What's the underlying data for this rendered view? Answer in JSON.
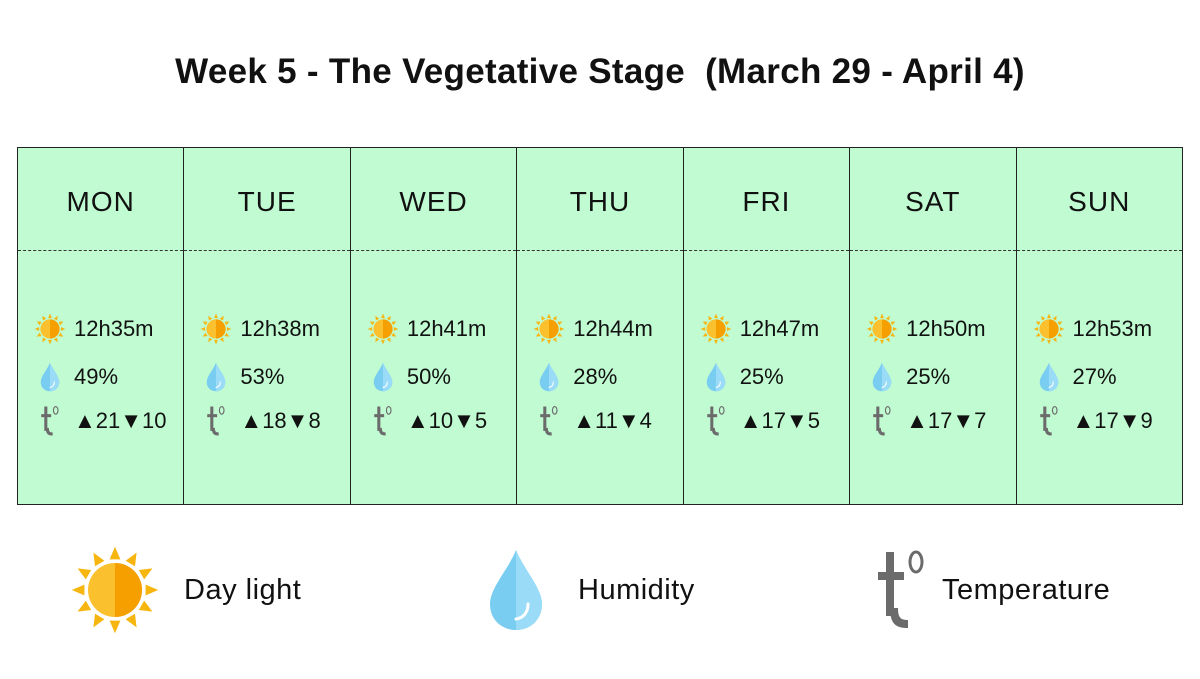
{
  "title": "Week 5 - The Vegetative Stage  (March 29 - April 4)",
  "colors": {
    "cell_bg": "#c0fbd1",
    "sun": "#f6b50f",
    "drop": "#79cdf1",
    "temp_icon": "#6b6b6b"
  },
  "days": [
    {
      "name": "MON",
      "daylight": "12h35m",
      "humidity": "49%",
      "temperature": "▲21▼10"
    },
    {
      "name": "TUE",
      "daylight": "12h38m",
      "humidity": "53%",
      "temperature": "▲18▼8"
    },
    {
      "name": "WED",
      "daylight": "12h41m",
      "humidity": "50%",
      "temperature": "▲10▼5"
    },
    {
      "name": "THU",
      "daylight": "12h44m",
      "humidity": "28%",
      "temperature": "▲11▼4"
    },
    {
      "name": "FRI",
      "daylight": "12h47m",
      "humidity": "25%",
      "temperature": "▲17▼5"
    },
    {
      "name": "SAT",
      "daylight": "12h50m",
      "humidity": "25%",
      "temperature": "▲17▼7"
    },
    {
      "name": "SUN",
      "daylight": "12h53m",
      "humidity": "27%",
      "temperature": "▲17▼9"
    }
  ],
  "legend": [
    {
      "icon": "sun-icon",
      "label": "Day light"
    },
    {
      "icon": "water-drop-icon",
      "label": "Humidity"
    },
    {
      "icon": "temperature-icon",
      "label": "Temperature"
    }
  ]
}
